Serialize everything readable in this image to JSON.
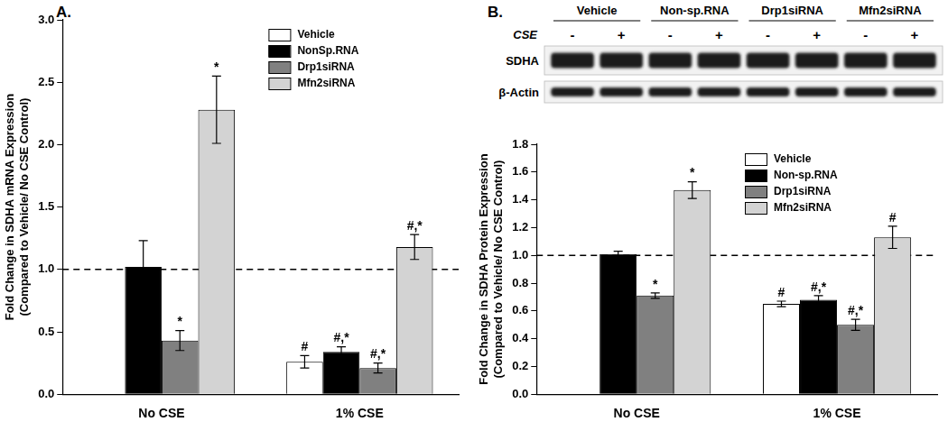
{
  "chart_data": [
    {
      "type": "bar",
      "title": "A.",
      "y_label": [
        "Fold Change in SDHA mRNA Expression",
        "(Compared to Vehicle/ No CSE Control)"
      ],
      "categories": [
        "No CSE",
        "1% CSE"
      ],
      "series": [
        {
          "name": "Vehicle",
          "color": "#ffffff",
          "values": [
            null,
            0.26
          ],
          "errors": [
            null,
            0.05
          ],
          "annotations": [
            null,
            "#"
          ]
        },
        {
          "name": "NonSp.RNA",
          "color": "#000000",
          "values": [
            1.02,
            0.34
          ],
          "errors": [
            0.21,
            0.04
          ],
          "annotations": [
            null,
            "#,*"
          ]
        },
        {
          "name": "Drp1siRNA",
          "color": "#808080",
          "values": [
            0.43,
            0.21
          ],
          "errors": [
            0.08,
            0.04
          ],
          "annotations": [
            "*",
            "#,*"
          ]
        },
        {
          "name": "Mfn2siRNA",
          "color": "#d3d3d3",
          "values": [
            2.28,
            1.18
          ],
          "errors": [
            0.27,
            0.1
          ],
          "annotations": [
            "*",
            "#,*"
          ]
        }
      ],
      "reference_line": 1,
      "ylim": [
        0,
        3
      ],
      "yticks": [
        {
          "value": 0,
          "label": "0.0"
        },
        0.5,
        {
          "value": 1,
          "label": "1.0"
        },
        1.5,
        {
          "value": 2,
          "label": "2.0"
        },
        2.5,
        {
          "value": 3,
          "label": "3.0"
        }
      ],
      "grid": false,
      "legend": "upper right"
    },
    {
      "type": "bar",
      "title": "B.",
      "y_label": [
        "Fold Change in SDHA Protein Expression",
        "(Compared to Vehicle/ No CSE Control)"
      ],
      "categories": [
        "No CSE",
        "1% CSE"
      ],
      "series": [
        {
          "name": "Vehicle",
          "color": "#ffffff",
          "values": [
            null,
            0.65
          ],
          "errors": [
            null,
            0.02
          ],
          "annotations": [
            null,
            "#"
          ]
        },
        {
          "name": "Non-sp.RNA",
          "color": "#000000",
          "values": [
            1.01,
            0.68
          ],
          "errors": [
            0.02,
            0.03
          ],
          "annotations": [
            null,
            "#,*"
          ]
        },
        {
          "name": "Drp1siRNA",
          "color": "#808080",
          "values": [
            0.71,
            0.5
          ],
          "errors": [
            0.02,
            0.04
          ],
          "annotations": [
            "*",
            "#,*"
          ]
        },
        {
          "name": "Mfn2siRNA",
          "color": "#d3d3d3",
          "values": [
            1.47,
            1.13
          ],
          "errors": [
            0.06,
            0.08
          ],
          "annotations": [
            "*",
            "#"
          ]
        }
      ],
      "reference_line": 1,
      "ylim": [
        0,
        1.8
      ],
      "yticks": [
        {
          "value": 0,
          "label": "0.0"
        },
        0.2,
        0.4,
        0.6,
        0.8,
        {
          "value": 1,
          "label": "1.0"
        },
        1.2,
        1.4,
        1.6,
        1.8
      ],
      "grid": false,
      "legend": "upper right"
    }
  ],
  "blot": {
    "lane_groups": [
      "Vehicle",
      "Non-sp.RNA",
      "Drp1siRNA",
      "Mfn2siRNA"
    ],
    "treatment_label": "CSE",
    "lane_marks": [
      "-",
      "+"
    ],
    "rows": [
      "SDHA",
      "β-Actin"
    ]
  }
}
